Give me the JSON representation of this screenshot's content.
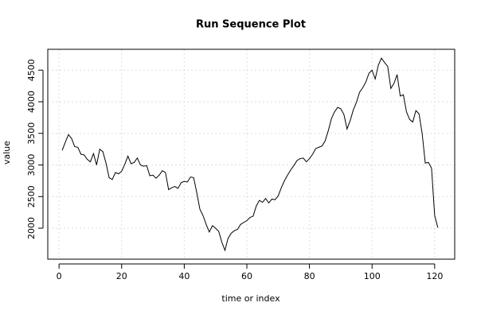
{
  "chart_data": {
    "type": "line",
    "title": "Run Sequence Plot",
    "x_label": "time or index",
    "y_label": "value",
    "x": [
      1,
      2,
      3,
      4,
      5,
      6,
      7,
      8,
      9,
      10,
      11,
      12,
      13,
      14,
      15,
      16,
      17,
      18,
      19,
      20,
      21,
      22,
      23,
      24,
      25,
      26,
      27,
      28,
      29,
      30,
      31,
      32,
      33,
      34,
      35,
      36,
      37,
      38,
      39,
      40,
      41,
      42,
      43,
      44,
      45,
      46,
      47,
      48,
      49,
      50,
      51,
      52,
      53,
      54,
      55,
      56,
      57,
      58,
      59,
      60,
      61,
      62,
      63,
      64,
      65,
      66,
      67,
      68,
      69,
      70,
      71,
      72,
      73,
      74,
      75,
      76,
      77,
      78,
      79,
      80,
      81,
      82,
      83,
      84,
      85,
      86,
      87,
      88,
      89,
      90,
      91,
      92,
      93,
      94,
      95,
      96,
      97,
      98,
      99,
      100,
      101,
      102,
      103,
      104,
      105,
      106,
      107,
      108,
      109,
      110,
      111,
      112,
      113,
      114,
      115,
      116,
      117,
      118,
      119,
      120,
      121
    ],
    "values": [
      3230,
      3360,
      3480,
      3420,
      3290,
      3280,
      3170,
      3160,
      3090,
      3050,
      3180,
      3000,
      3250,
      3210,
      3030,
      2800,
      2770,
      2880,
      2860,
      2900,
      3010,
      3140,
      3020,
      3040,
      3110,
      3000,
      2980,
      2990,
      2830,
      2840,
      2790,
      2840,
      2910,
      2880,
      2610,
      2640,
      2660,
      2630,
      2720,
      2740,
      2730,
      2810,
      2800,
      2560,
      2300,
      2200,
      2060,
      1940,
      2040,
      2000,
      1950,
      1780,
      1650,
      1840,
      1920,
      1960,
      1980,
      2060,
      2090,
      2120,
      2170,
      2190,
      2350,
      2440,
      2410,
      2470,
      2400,
      2460,
      2450,
      2510,
      2640,
      2750,
      2840,
      2920,
      2990,
      3070,
      3100,
      3110,
      3050,
      3100,
      3170,
      3260,
      3280,
      3300,
      3380,
      3540,
      3730,
      3840,
      3910,
      3890,
      3800,
      3570,
      3700,
      3870,
      3990,
      4150,
      4220,
      4310,
      4450,
      4500,
      4360,
      4580,
      4690,
      4620,
      4560,
      4210,
      4290,
      4430,
      4090,
      4110,
      3840,
      3720,
      3680,
      3860,
      3810,
      3500,
      3030,
      3040,
      2950,
      2200,
      2010
    ],
    "color": "#000000",
    "xlim": [
      -3.6,
      126.4
    ],
    "xticks": [
      0,
      20,
      40,
      60,
      80,
      100,
      120
    ],
    "ylim": [
      1510,
      4830
    ],
    "yticks": [
      2000,
      2500,
      3000,
      3500,
      4000,
      4500
    ],
    "grid": true
  }
}
